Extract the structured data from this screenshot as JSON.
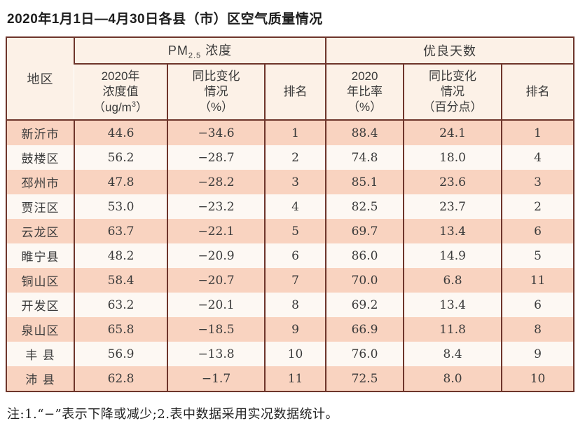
{
  "title": "2020年1月1日—4月30日各县（市）区空气质量情况",
  "colors": {
    "border": "#6e352b",
    "row_shade": "#f9d3c0",
    "row_light": "#fdf8f3",
    "header_bg": "#fcf1e7"
  },
  "table": {
    "header": {
      "region": "地区",
      "pm_group": {
        "prefix": "PM",
        "sub": "2.5",
        "suffix": " 浓度"
      },
      "gd_group": "优良天数",
      "subs": [
        {
          "lines": [
            "2020年",
            "浓度值"
          ],
          "unit": {
            "pre": "（ug/m",
            "sup": "3",
            "post": "）"
          }
        },
        {
          "lines": [
            "同比变化",
            "情况",
            "（%）"
          ]
        },
        {
          "lines": [
            "排名"
          ]
        },
        {
          "lines": [
            "2020",
            "年比率",
            "（%）"
          ]
        },
        {
          "lines": [
            "同比变化",
            "情况",
            "（百分点）"
          ]
        },
        {
          "lines": [
            "排名"
          ]
        }
      ]
    },
    "rows": [
      [
        "新沂市",
        "44.6",
        "−34.6",
        "1",
        "88.4",
        "24.1",
        "1"
      ],
      [
        "鼓楼区",
        "56.2",
        "−28.7",
        "2",
        "74.8",
        "18.0",
        "4"
      ],
      [
        "邳州市",
        "47.8",
        "−28.2",
        "3",
        "85.1",
        "23.6",
        "3"
      ],
      [
        "贾汪区",
        "53.0",
        "−23.2",
        "4",
        "82.5",
        "23.7",
        "2"
      ],
      [
        "云龙区",
        "63.7",
        "−22.1",
        "5",
        "69.7",
        "13.4",
        "6"
      ],
      [
        "睢宁县",
        "48.2",
        "−20.9",
        "6",
        "86.0",
        "14.9",
        "5"
      ],
      [
        "铜山区",
        "58.4",
        "−20.7",
        "7",
        "70.0",
        "6.8",
        "11"
      ],
      [
        "开发区",
        "63.2",
        "−20.1",
        "8",
        "69.2",
        "13.4",
        "6"
      ],
      [
        "泉山区",
        "65.8",
        "−18.5",
        "9",
        "66.9",
        "11.8",
        "8"
      ],
      [
        "丰 县",
        "56.9",
        "−13.8",
        "10",
        "76.0",
        "8.4",
        "9"
      ],
      [
        "沛 县",
        "62.8",
        "−1.7",
        "11",
        "72.5",
        "8.0",
        "10"
      ]
    ]
  },
  "note": "注:1.“−”表示下降或减少;2.表中数据采用实况数据统计。"
}
